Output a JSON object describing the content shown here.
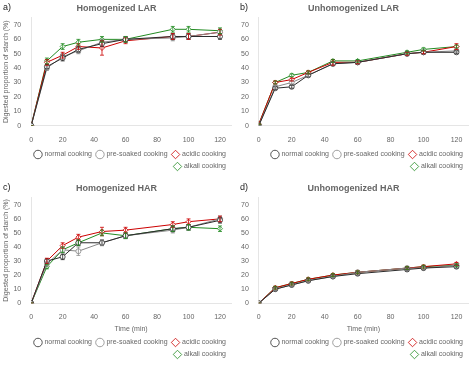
{
  "chart_data": [
    {
      "type": "line",
      "title": "Homogenized LAR",
      "annotation": "a)",
      "ylabel": "Digested proportion of starch (%)",
      "x": [
        0,
        10,
        20,
        30,
        45,
        60,
        90,
        100,
        120
      ],
      "xlim": [
        0,
        127
      ],
      "xticks": [
        0,
        20,
        40,
        60,
        80,
        100,
        120
      ],
      "ylim": [
        0,
        75
      ],
      "yticks": [
        0,
        10,
        20,
        30,
        40,
        50,
        60,
        70
      ],
      "grid": false,
      "legend": "lower right",
      "series": [
        {
          "name": "normal cooking",
          "color": "#2b2b2b",
          "marker": "circle",
          "line_style": "solid",
          "values": [
            0,
            41,
            47,
            53,
            57,
            60,
            62,
            62,
            62
          ],
          "errors": [
            0,
            1.5,
            2,
            2,
            2,
            2,
            2,
            2,
            2
          ]
        },
        {
          "name": "pre-soaked cooking",
          "color": "#888888",
          "marker": "circle",
          "line_style": "solid",
          "values": [
            0,
            40,
            48,
            52,
            58,
            60,
            61,
            62,
            65
          ],
          "errors": [
            0,
            1.5,
            2,
            2,
            2,
            2,
            2,
            2,
            2
          ]
        },
        {
          "name": "acidic cooking",
          "color": "#cc0000",
          "marker": "diamond",
          "line_style": "solid",
          "values": [
            0,
            44,
            49,
            55,
            54,
            59,
            62,
            62,
            65
          ],
          "errors": [
            0,
            2,
            2,
            2,
            5,
            2,
            2,
            2,
            2
          ]
        },
        {
          "name": "alkali cooking",
          "color": "#228B22",
          "marker": "diamond",
          "line_style": "solid",
          "values": [
            0,
            45,
            55,
            58,
            60,
            60,
            67,
            67,
            66
          ],
          "errors": [
            0,
            2,
            2,
            2,
            2,
            2,
            2,
            2,
            2
          ]
        }
      ]
    },
    {
      "type": "line",
      "title": "Unhomogenized LAR",
      "annotation": "b)",
      "x": [
        0,
        10,
        20,
        30,
        45,
        60,
        90,
        100,
        120
      ],
      "xlim": [
        0,
        127
      ],
      "xticks": [
        0,
        20,
        40,
        60,
        80,
        100,
        120
      ],
      "ylim": [
        0,
        75
      ],
      "yticks": [
        0,
        10,
        20,
        30,
        40,
        50,
        60,
        70
      ],
      "grid": false,
      "legend": "lower right",
      "series": [
        {
          "name": "normal cooking",
          "color": "#2b2b2b",
          "marker": "circle",
          "line_style": "solid",
          "values": [
            0,
            26,
            27,
            35,
            43,
            44,
            50,
            51,
            51
          ],
          "errors": [
            0,
            1,
            1,
            1,
            1,
            1,
            1,
            1,
            1
          ]
        },
        {
          "name": "pre-soaked cooking",
          "color": "#888888",
          "marker": "circle",
          "line_style": "solid",
          "values": [
            0,
            27,
            30,
            35,
            43,
            44,
            50,
            51,
            52
          ],
          "errors": [
            0,
            1,
            1,
            1,
            1,
            1,
            1,
            1,
            1
          ]
        },
        {
          "name": "acidic cooking",
          "color": "#cc0000",
          "marker": "diamond",
          "line_style": "solid",
          "values": [
            1,
            30,
            32,
            37,
            44,
            44,
            50,
            51,
            55
          ],
          "errors": [
            0,
            1,
            1,
            1,
            2,
            1,
            1,
            1,
            2
          ]
        },
        {
          "name": "alkali cooking",
          "color": "#228B22",
          "marker": "diamond",
          "line_style": "solid",
          "values": [
            1,
            30,
            35,
            37,
            45,
            45,
            51,
            53,
            55
          ],
          "errors": [
            0,
            1,
            1,
            1,
            1,
            1,
            1,
            1,
            1
          ]
        }
      ]
    },
    {
      "type": "line",
      "title": "Homogenized HAR",
      "annotation": "c)",
      "ylabel": "Digested proportion of starch (%)",
      "xlabel": "Time (min)",
      "x": [
        0,
        10,
        20,
        30,
        45,
        60,
        90,
        100,
        120
      ],
      "xlim": [
        0,
        127
      ],
      "xticks": [
        0,
        20,
        40,
        60,
        80,
        100,
        120
      ],
      "ylim": [
        0,
        75
      ],
      "yticks": [
        0,
        10,
        20,
        30,
        40,
        50,
        60,
        70
      ],
      "grid": false,
      "legend": "lower right",
      "series": [
        {
          "name": "normal cooking",
          "color": "#2b2b2b",
          "marker": "circle",
          "line_style": "solid",
          "values": [
            0,
            30,
            33,
            43,
            43,
            48,
            53,
            54,
            59
          ],
          "errors": [
            0,
            1.5,
            2,
            2,
            2,
            2,
            2,
            2,
            2
          ]
        },
        {
          "name": "pre-soaked cooking",
          "color": "#888888",
          "marker": "circle",
          "line_style": "solid",
          "values": [
            0,
            28,
            38,
            37,
            43,
            48,
            52,
            54,
            60
          ],
          "errors": [
            0,
            1.5,
            2,
            3,
            2,
            2,
            2,
            2,
            2
          ]
        },
        {
          "name": "acidic cooking",
          "color": "#cc0000",
          "marker": "diamond",
          "line_style": "solid",
          "values": [
            0,
            30,
            41,
            47,
            51,
            52,
            56,
            58,
            60
          ],
          "errors": [
            0,
            2,
            2,
            2,
            3,
            2,
            2,
            2,
            2
          ]
        },
        {
          "name": "alkali cooking",
          "color": "#228B22",
          "marker": "diamond",
          "line_style": "solid",
          "values": [
            0,
            26,
            38,
            43,
            50,
            48,
            53,
            54,
            53
          ],
          "errors": [
            0,
            1.5,
            2,
            2,
            2,
            2,
            2,
            2,
            2
          ]
        }
      ]
    },
    {
      "type": "line",
      "title": "Unhomogenized HAR",
      "annotation": "d)",
      "xlabel": "Time (min)",
      "x": [
        0,
        10,
        20,
        30,
        45,
        60,
        90,
        100,
        120
      ],
      "xlim": [
        0,
        127
      ],
      "xticks": [
        0,
        20,
        40,
        60,
        80,
        100,
        120
      ],
      "ylim": [
        0,
        75
      ],
      "yticks": [
        0,
        10,
        20,
        30,
        40,
        50,
        60,
        70
      ],
      "grid": false,
      "legend": "lower right",
      "series": [
        {
          "name": "normal cooking",
          "color": "#2b2b2b",
          "marker": "circle",
          "line_style": "solid",
          "values": [
            0,
            10,
            13,
            16,
            19,
            21,
            24,
            25,
            26
          ],
          "errors": [
            0,
            1,
            1,
            1,
            1,
            1,
            1,
            1,
            1
          ]
        },
        {
          "name": "pre-soaked cooking",
          "color": "#888888",
          "marker": "circle",
          "line_style": "solid",
          "values": [
            0,
            10,
            13,
            16,
            19,
            22,
            25,
            25,
            27
          ],
          "errors": [
            0,
            1,
            1,
            1,
            1,
            1,
            1,
            1,
            1
          ]
        },
        {
          "name": "acidic cooking",
          "color": "#cc0000",
          "marker": "diamond",
          "line_style": "solid",
          "values": [
            0,
            11,
            14,
            17,
            20,
            22,
            25,
            26,
            28
          ],
          "errors": [
            0,
            1,
            1,
            1,
            1,
            1,
            1,
            1,
            1
          ]
        },
        {
          "name": "alkali cooking",
          "color": "#228B22",
          "marker": "diamond",
          "line_style": "solid",
          "values": [
            0,
            11,
            14,
            17,
            20,
            22,
            25,
            26,
            27
          ],
          "errors": [
            0,
            1,
            1,
            1,
            1,
            1,
            1,
            1,
            1
          ]
        }
      ]
    }
  ]
}
